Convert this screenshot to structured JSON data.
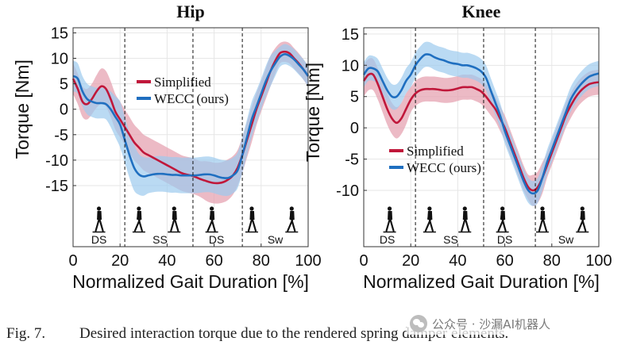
{
  "caption": {
    "label": "Fig. 7.",
    "text": "Desired interaction torque due to the rendered spring damper elements."
  },
  "watermark": {
    "text": "公众号 · 沙漏AI机器人",
    "icon": "wechat-icon"
  },
  "colors": {
    "simplified": "#c0173a",
    "simplified_band": "#e6a3b1",
    "wecc": "#1f6fc0",
    "wecc_band": "#9ccbee",
    "overlap": "#8f8fc2",
    "grid": "#e6e6e6",
    "axis": "#333333"
  },
  "chart_data": [
    {
      "type": "line",
      "title": "Hip",
      "xlabel": "Normalized Gait Duration [%]",
      "ylabel": "Torque [Nm]",
      "xlim": [
        0,
        100
      ],
      "ylim": [
        -27,
        16
      ],
      "xticks": [
        0,
        20,
        40,
        60,
        80,
        100
      ],
      "yticks": [
        -15,
        -10,
        -5,
        0,
        5,
        10,
        15
      ],
      "grid": true,
      "legend_position": "upper-center",
      "x": [
        0,
        2,
        4,
        6,
        8,
        10,
        12,
        14,
        16,
        18,
        20,
        22,
        24,
        26,
        28,
        30,
        32,
        34,
        36,
        38,
        40,
        42,
        44,
        46,
        48,
        50,
        52,
        54,
        56,
        58,
        60,
        62,
        64,
        66,
        68,
        70,
        72,
        74,
        76,
        78,
        80,
        82,
        84,
        86,
        88,
        90,
        92,
        94,
        96,
        98,
        100
      ],
      "series": [
        {
          "name": "Simplified",
          "values": [
            6,
            4,
            1.5,
            1,
            2,
            3.5,
            4.5,
            4,
            2,
            -0.5,
            -2,
            -3.5,
            -5,
            -6.5,
            -7.5,
            -8.5,
            -9,
            -9.5,
            -10,
            -10.5,
            -11,
            -11.5,
            -12,
            -12.5,
            -12.8,
            -13,
            -13.3,
            -13.7,
            -14,
            -14.3,
            -14.5,
            -14.5,
            -14.3,
            -13.8,
            -13,
            -11.5,
            -9,
            -6,
            -3,
            0,
            2.5,
            5,
            7.5,
            9.5,
            11,
            11.3,
            11,
            10,
            9,
            7.8,
            6.5
          ],
          "band": [
            3,
            3,
            3,
            3,
            3,
            3.2,
            3.5,
            3.5,
            3.5,
            3.5,
            3.5,
            3.5,
            3.5,
            3.5,
            3.5,
            3.5,
            3.5,
            3.5,
            3.5,
            3.5,
            3.5,
            3.5,
            3.5,
            3.5,
            3.5,
            3.5,
            3.5,
            3.5,
            3.8,
            4,
            4,
            4,
            4,
            4,
            3.8,
            3.5,
            3.5,
            3.5,
            3.5,
            3.2,
            3,
            3,
            3,
            2.5,
            2,
            2,
            2,
            2,
            2,
            2,
            2
          ]
        },
        {
          "name": "WECC (ours)",
          "values": [
            6.5,
            6,
            3.5,
            2,
            1.5,
            1.2,
            1.2,
            1,
            0,
            -1.5,
            -3,
            -6,
            -9,
            -11.5,
            -12.8,
            -13.2,
            -13,
            -12.8,
            -12.7,
            -12.7,
            -12.8,
            -12.9,
            -12.9,
            -13,
            -13,
            -13,
            -13,
            -12.9,
            -12.8,
            -12.8,
            -13,
            -13.3,
            -13.5,
            -13.5,
            -13,
            -12,
            -9,
            -5.5,
            -2,
            0.5,
            3,
            5.5,
            7.5,
            9,
            10.3,
            10.8,
            10.5,
            9.8,
            8.8,
            7.8,
            6.5
          ],
          "band": [
            3,
            3,
            3,
            3,
            3,
            3,
            3,
            3,
            3.5,
            4,
            4.5,
            4.5,
            4.5,
            4.5,
            4,
            3.8,
            3.5,
            3.5,
            3.5,
            3.5,
            3.5,
            3.5,
            3.5,
            3.5,
            3.5,
            3.5,
            3.5,
            3.5,
            3.5,
            3.5,
            3.5,
            3.5,
            3.5,
            3.5,
            3.5,
            3.5,
            3.5,
            3.5,
            3.5,
            3.2,
            3,
            3,
            3,
            2.5,
            2,
            2,
            2,
            2,
            2,
            2,
            2
          ]
        }
      ],
      "phases": [
        {
          "label": "DS",
          "center": 11
        },
        {
          "label": "SS",
          "center": 37
        },
        {
          "label": "DS",
          "center": 61
        },
        {
          "label": "Sw",
          "center": 86
        }
      ],
      "phase_boundaries": [
        22,
        51,
        72
      ],
      "walker_icons_at": [
        11,
        28,
        43,
        59,
        76,
        93
      ]
    },
    {
      "type": "line",
      "title": "Knee",
      "xlabel": "Normalized Gait Duration [%]",
      "ylabel": "Torque [Nm]",
      "xlim": [
        0,
        100
      ],
      "ylim": [
        -19,
        16
      ],
      "xticks": [
        0,
        20,
        40,
        60,
        80,
        100
      ],
      "yticks": [
        -10,
        -5,
        0,
        5,
        10,
        15
      ],
      "grid": true,
      "legend_position": "center-left",
      "x": [
        0,
        2,
        4,
        6,
        8,
        10,
        12,
        14,
        16,
        18,
        20,
        22,
        24,
        26,
        28,
        30,
        32,
        34,
        36,
        38,
        40,
        42,
        44,
        46,
        48,
        50,
        52,
        54,
        56,
        58,
        60,
        62,
        64,
        66,
        68,
        70,
        72,
        74,
        76,
        78,
        80,
        82,
        84,
        86,
        88,
        90,
        92,
        94,
        96,
        98,
        100
      ],
      "series": [
        {
          "name": "Simplified",
          "values": [
            7.5,
            8.5,
            8.5,
            7,
            5,
            3,
            1.5,
            0.8,
            1.5,
            3,
            4.5,
            5.5,
            6,
            6.2,
            6.2,
            6.2,
            6.1,
            6,
            6,
            6.1,
            6.3,
            6.5,
            6.5,
            6.5,
            6.2,
            5.8,
            5,
            4,
            3,
            1.5,
            0,
            -2,
            -4,
            -6,
            -8,
            -9.5,
            -10,
            -9.5,
            -8,
            -6,
            -4,
            -2,
            0,
            2,
            3.5,
            4.8,
            5.8,
            6.5,
            7,
            7.2,
            7.3
          ],
          "band": [
            2.5,
            2.5,
            2.5,
            2.5,
            2.5,
            2.5,
            2.5,
            2.5,
            2.5,
            2.5,
            2,
            2,
            2,
            2,
            2,
            2,
            2,
            2,
            2,
            2,
            2,
            2,
            2,
            2,
            2,
            2,
            2,
            2,
            2,
            2,
            2,
            2,
            2,
            2,
            2,
            2,
            2.5,
            2.5,
            2.5,
            2,
            2,
            2,
            2,
            2,
            2,
            2,
            2,
            2,
            2,
            2,
            2
          ]
        },
        {
          "name": "WECC (ours)",
          "values": [
            8.5,
            9.5,
            9.5,
            9,
            7.5,
            6,
            5,
            5,
            6,
            7.5,
            8.5,
            10,
            11,
            11.7,
            11.7,
            11.3,
            11,
            10.8,
            10.5,
            10.3,
            10.2,
            10,
            10,
            9.8,
            9.5,
            9,
            8,
            6,
            4,
            2,
            -0.5,
            -2.5,
            -4.5,
            -6.5,
            -8.5,
            -10,
            -10.5,
            -10,
            -8,
            -5.5,
            -3.5,
            -1.5,
            0.5,
            2.5,
            4.5,
            5.8,
            6.8,
            7.6,
            8.2,
            8.5,
            8.7
          ],
          "band": [
            2,
            2,
            2,
            2,
            2,
            2,
            2,
            2,
            2,
            2,
            2,
            2,
            2,
            2,
            2,
            2,
            2,
            2,
            2,
            2,
            2,
            2,
            2,
            2,
            2,
            2,
            2,
            2,
            2,
            2,
            2,
            2,
            2,
            2,
            2,
            2,
            2,
            2,
            2,
            2,
            2,
            2,
            2,
            2,
            2,
            2,
            2,
            2,
            2,
            2,
            2
          ]
        }
      ],
      "phases": [
        {
          "label": "DS",
          "center": 10
        },
        {
          "label": "SS",
          "center": 37
        },
        {
          "label": "DS",
          "center": 60
        },
        {
          "label": "Sw",
          "center": 86
        }
      ],
      "phase_boundaries": [
        22,
        51,
        73
      ],
      "walker_icons_at": [
        11,
        28,
        43,
        59,
        76,
        93
      ]
    }
  ]
}
